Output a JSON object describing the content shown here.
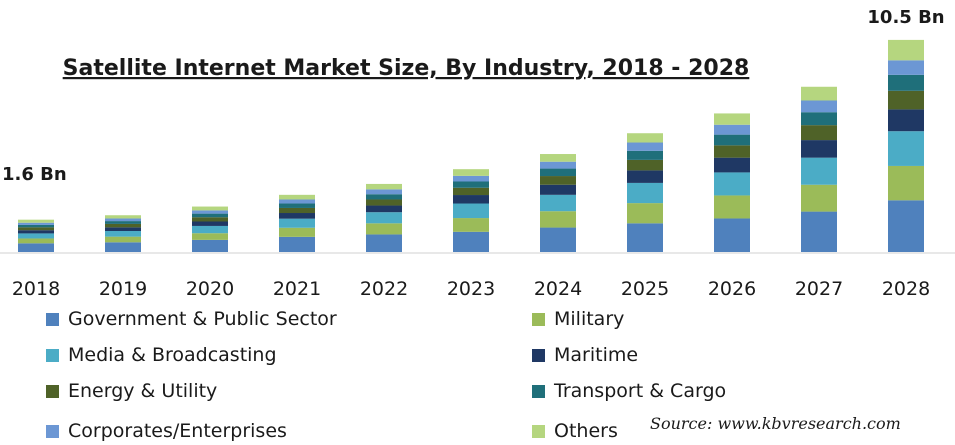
{
  "chart_data": {
    "type": "bar",
    "stacked": true,
    "title": "Satellite Internet Market Size, By Industry, 2018 - 2028",
    "categories": [
      "2018",
      "2019",
      "2020",
      "2021",
      "2022",
      "2023",
      "2024",
      "2025",
      "2026",
      "2027",
      "2028"
    ],
    "annotations": [
      {
        "category": "2018",
        "text": "1.6 Bn"
      },
      {
        "category": "2028",
        "text": "10.5 Bn"
      }
    ],
    "series": [
      {
        "name": "Government & Public Sector",
        "color": "#4f81bd",
        "values": [
          0.43,
          0.48,
          0.6,
          0.75,
          0.87,
          1.0,
          1.21,
          1.42,
          1.66,
          2.0,
          2.56
        ]
      },
      {
        "name": "Military",
        "color": "#9bbb59",
        "values": [
          0.24,
          0.28,
          0.33,
          0.45,
          0.55,
          0.68,
          0.81,
          1.0,
          1.14,
          1.33,
          1.7
        ]
      },
      {
        "name": "Media & Broadcasting",
        "color": "#4bacc6",
        "values": [
          0.25,
          0.28,
          0.36,
          0.45,
          0.55,
          0.72,
          0.81,
          1.0,
          1.14,
          1.34,
          1.72
        ]
      },
      {
        "name": "Maritime",
        "color": "#1f3864",
        "values": [
          0.16,
          0.18,
          0.22,
          0.28,
          0.33,
          0.42,
          0.5,
          0.62,
          0.73,
          0.87,
          1.08
        ]
      },
      {
        "name": "Energy & Utility",
        "color": "#4f6228",
        "values": [
          0.14,
          0.17,
          0.21,
          0.25,
          0.3,
          0.36,
          0.43,
          0.52,
          0.61,
          0.74,
          0.92
        ]
      },
      {
        "name": "Transport & Cargo",
        "color": "#1f6f7a",
        "values": [
          0.12,
          0.14,
          0.18,
          0.22,
          0.26,
          0.31,
          0.37,
          0.45,
          0.53,
          0.64,
          0.79
        ]
      },
      {
        "name": "Corporates/Enterprises",
        "color": "#6c97d4",
        "values": [
          0.11,
          0.13,
          0.16,
          0.2,
          0.24,
          0.28,
          0.34,
          0.41,
          0.49,
          0.58,
          0.72
        ]
      },
      {
        "name": "Others",
        "color": "#b5d67f",
        "values": [
          0.15,
          0.16,
          0.19,
          0.23,
          0.27,
          0.33,
          0.38,
          0.46,
          0.56,
          0.68,
          1.01
        ]
      }
    ],
    "legend_position": "bottom",
    "grid": false
  },
  "source": "Source:  www.kbvresearch.com"
}
